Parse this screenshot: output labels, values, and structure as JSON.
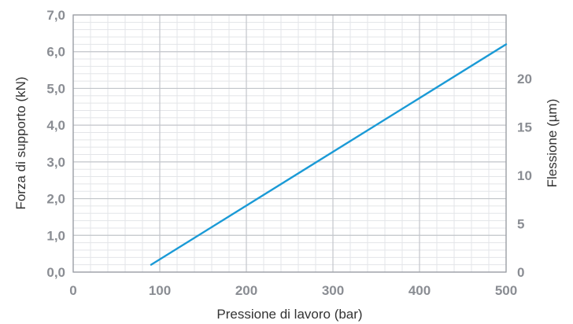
{
  "chart_data": {
    "type": "line",
    "xlabel": "Pressione di lavoro (bar)",
    "ylabel": "Forza di supporto (kN)",
    "y2label": "Flessione (µm)",
    "xlim": [
      0,
      500
    ],
    "ylim": [
      0,
      7
    ],
    "y2lim": [
      0,
      26.6
    ],
    "x_ticks": [
      "0",
      "100",
      "200",
      "300",
      "400",
      "500"
    ],
    "y_ticks": [
      "0,0",
      "1,0",
      "2,0",
      "3,0",
      "4,0",
      "5,0",
      "6,0",
      "7,0"
    ],
    "y2_ticks": [
      "0",
      "5",
      "10",
      "15",
      "20"
    ],
    "grid": true,
    "series": [
      {
        "x": [
          90,
          500
        ],
        "y": [
          0.2,
          6.2
        ],
        "color": "#1a9ad6"
      }
    ]
  }
}
